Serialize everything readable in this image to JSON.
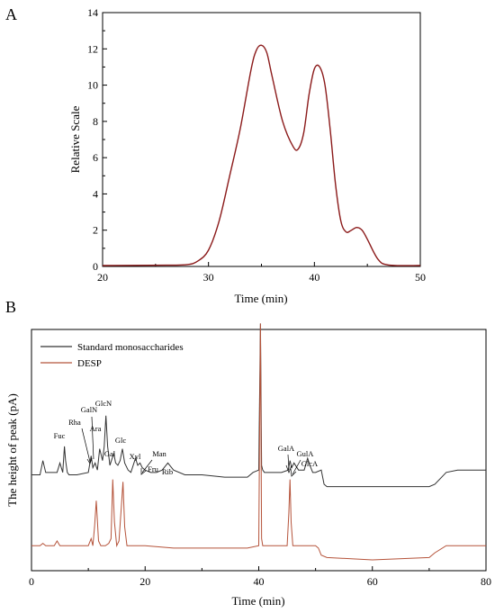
{
  "chart_data": [
    {
      "panel_label": "A",
      "type": "line",
      "xlabel": "Time (min)",
      "ylabel": "Relative Scale",
      "xlim": [
        20,
        50
      ],
      "ylim": [
        0,
        14
      ],
      "xticks": [
        20,
        30,
        40,
        50
      ],
      "yticks": [
        0,
        2,
        4,
        6,
        8,
        10,
        12,
        14
      ],
      "grid": false,
      "series": [
        {
          "color": "#8b1a1a",
          "x": [
            20,
            26,
            28,
            29,
            30,
            31,
            32,
            33,
            34,
            34.5,
            35,
            35.5,
            36,
            37,
            38,
            38.5,
            39,
            39.5,
            40,
            40.5,
            41,
            41.5,
            42,
            42.5,
            43,
            43.5,
            44,
            44.5,
            45,
            46,
            47,
            50
          ],
          "y": [
            0.05,
            0.07,
            0.1,
            0.3,
            0.9,
            2.5,
            5.0,
            7.6,
            10.8,
            11.9,
            12.2,
            11.8,
            10.5,
            8.0,
            6.6,
            6.5,
            7.4,
            9.5,
            10.9,
            11.0,
            10.0,
            7.5,
            4.5,
            2.5,
            1.9,
            2.0,
            2.15,
            2.0,
            1.5,
            0.4,
            0.08,
            0.05
          ]
        }
      ]
    },
    {
      "panel_label": "B",
      "type": "line",
      "xlabel": "Time (min)",
      "ylabel": "The height of peak (pA)",
      "xlim": [
        0,
        80
      ],
      "ylim": [
        0,
        100
      ],
      "xticks": [
        0,
        20,
        40,
        60,
        80
      ],
      "grid": false,
      "legend_position": "top-left",
      "series": [
        {
          "name": "Standard monosaccharides",
          "color": "#333333",
          "x": [
            0,
            1.5,
            2,
            2.5,
            4.5,
            5,
            5.5,
            5.8,
            6,
            6.3,
            6.6,
            8,
            10,
            10.5,
            10.8,
            11.2,
            11.6,
            12,
            12.5,
            12.8,
            13.1,
            13.4,
            13.8,
            14.2,
            14.5,
            14.8,
            15.2,
            15.6,
            16,
            16.4,
            17,
            17.5,
            18.3,
            18.7,
            19.1,
            19.5,
            20,
            21,
            22,
            23,
            24,
            25,
            27,
            30,
            34,
            38,
            39,
            40,
            40.3,
            40.5,
            40.7,
            41,
            42,
            44,
            45.2,
            45.5,
            45.8,
            46.2,
            47,
            48,
            48.6,
            49,
            49.5,
            50,
            51,
            51.5,
            52,
            60,
            70,
            71,
            73,
            75,
            80
          ],
          "y": [
            36,
            36,
            42,
            37,
            37,
            41,
            37,
            48,
            42,
            37,
            36,
            36,
            37,
            44,
            39,
            41,
            38,
            47,
            42,
            48,
            61,
            48,
            40,
            43,
            45,
            41,
            40,
            42,
            47,
            41,
            38,
            37,
            43,
            40,
            41,
            39,
            38,
            37,
            37,
            38,
            41,
            38,
            36,
            36,
            35,
            35,
            37,
            38,
            100,
            40,
            38,
            37,
            37,
            37,
            38,
            42,
            39,
            41,
            38,
            38,
            43,
            40,
            37,
            37,
            38,
            32,
            31,
            31,
            31,
            32,
            37,
            38,
            38
          ]
        },
        {
          "name": "DESP",
          "color": "#b5533a",
          "x": [
            0,
            1.5,
            2,
            2.5,
            4,
            4.5,
            5,
            6,
            8,
            10,
            10.5,
            10.8,
            11.1,
            11.4,
            11.8,
            12.2,
            13,
            13.6,
            14,
            14.3,
            14.6,
            15,
            15.4,
            15.8,
            16.1,
            16.4,
            16.8,
            17.5,
            20,
            25,
            30,
            35,
            38,
            40,
            40.3,
            40.5,
            40.7,
            41,
            42,
            44,
            45,
            45.3,
            45.5,
            45.7,
            46,
            47,
            50,
            50.5,
            51,
            52,
            60,
            70,
            71,
            73,
            75,
            80
          ],
          "y": [
            6,
            6,
            7,
            6,
            6,
            8,
            6,
            6,
            6,
            6,
            9,
            6,
            14,
            25,
            8,
            6,
            6,
            7,
            9,
            34,
            16,
            6,
            8,
            22,
            33,
            14,
            6,
            6,
            6,
            5,
            5,
            5,
            5,
            6,
            100,
            9,
            6,
            6,
            6,
            6,
            6,
            20,
            34,
            16,
            6,
            6,
            6,
            5,
            2,
            1,
            0,
            1,
            3,
            6,
            6,
            6
          ]
        }
      ],
      "annotations": [
        {
          "text": "Fuc",
          "x": 5.8
        },
        {
          "text": "Rha",
          "x": 10.5
        },
        {
          "text": "GalN",
          "x": 11.2
        },
        {
          "text": "Ara",
          "x": 12.0
        },
        {
          "text": "GlcN",
          "x": 13.1
        },
        {
          "text": "Gal",
          "x": 14.5
        },
        {
          "text": "Glc",
          "x": 16.0
        },
        {
          "text": "Xyl",
          "x": 18.3
        },
        {
          "text": "Man",
          "x": 19.1
        },
        {
          "text": "Fru",
          "x": 20.0
        },
        {
          "text": "Rib",
          "x": 24.0
        },
        {
          "text": "GalA",
          "x": 45.5
        },
        {
          "text": "GulA",
          "x": 46.2
        },
        {
          "text": "GlcA",
          "x": 48.6
        }
      ]
    }
  ]
}
